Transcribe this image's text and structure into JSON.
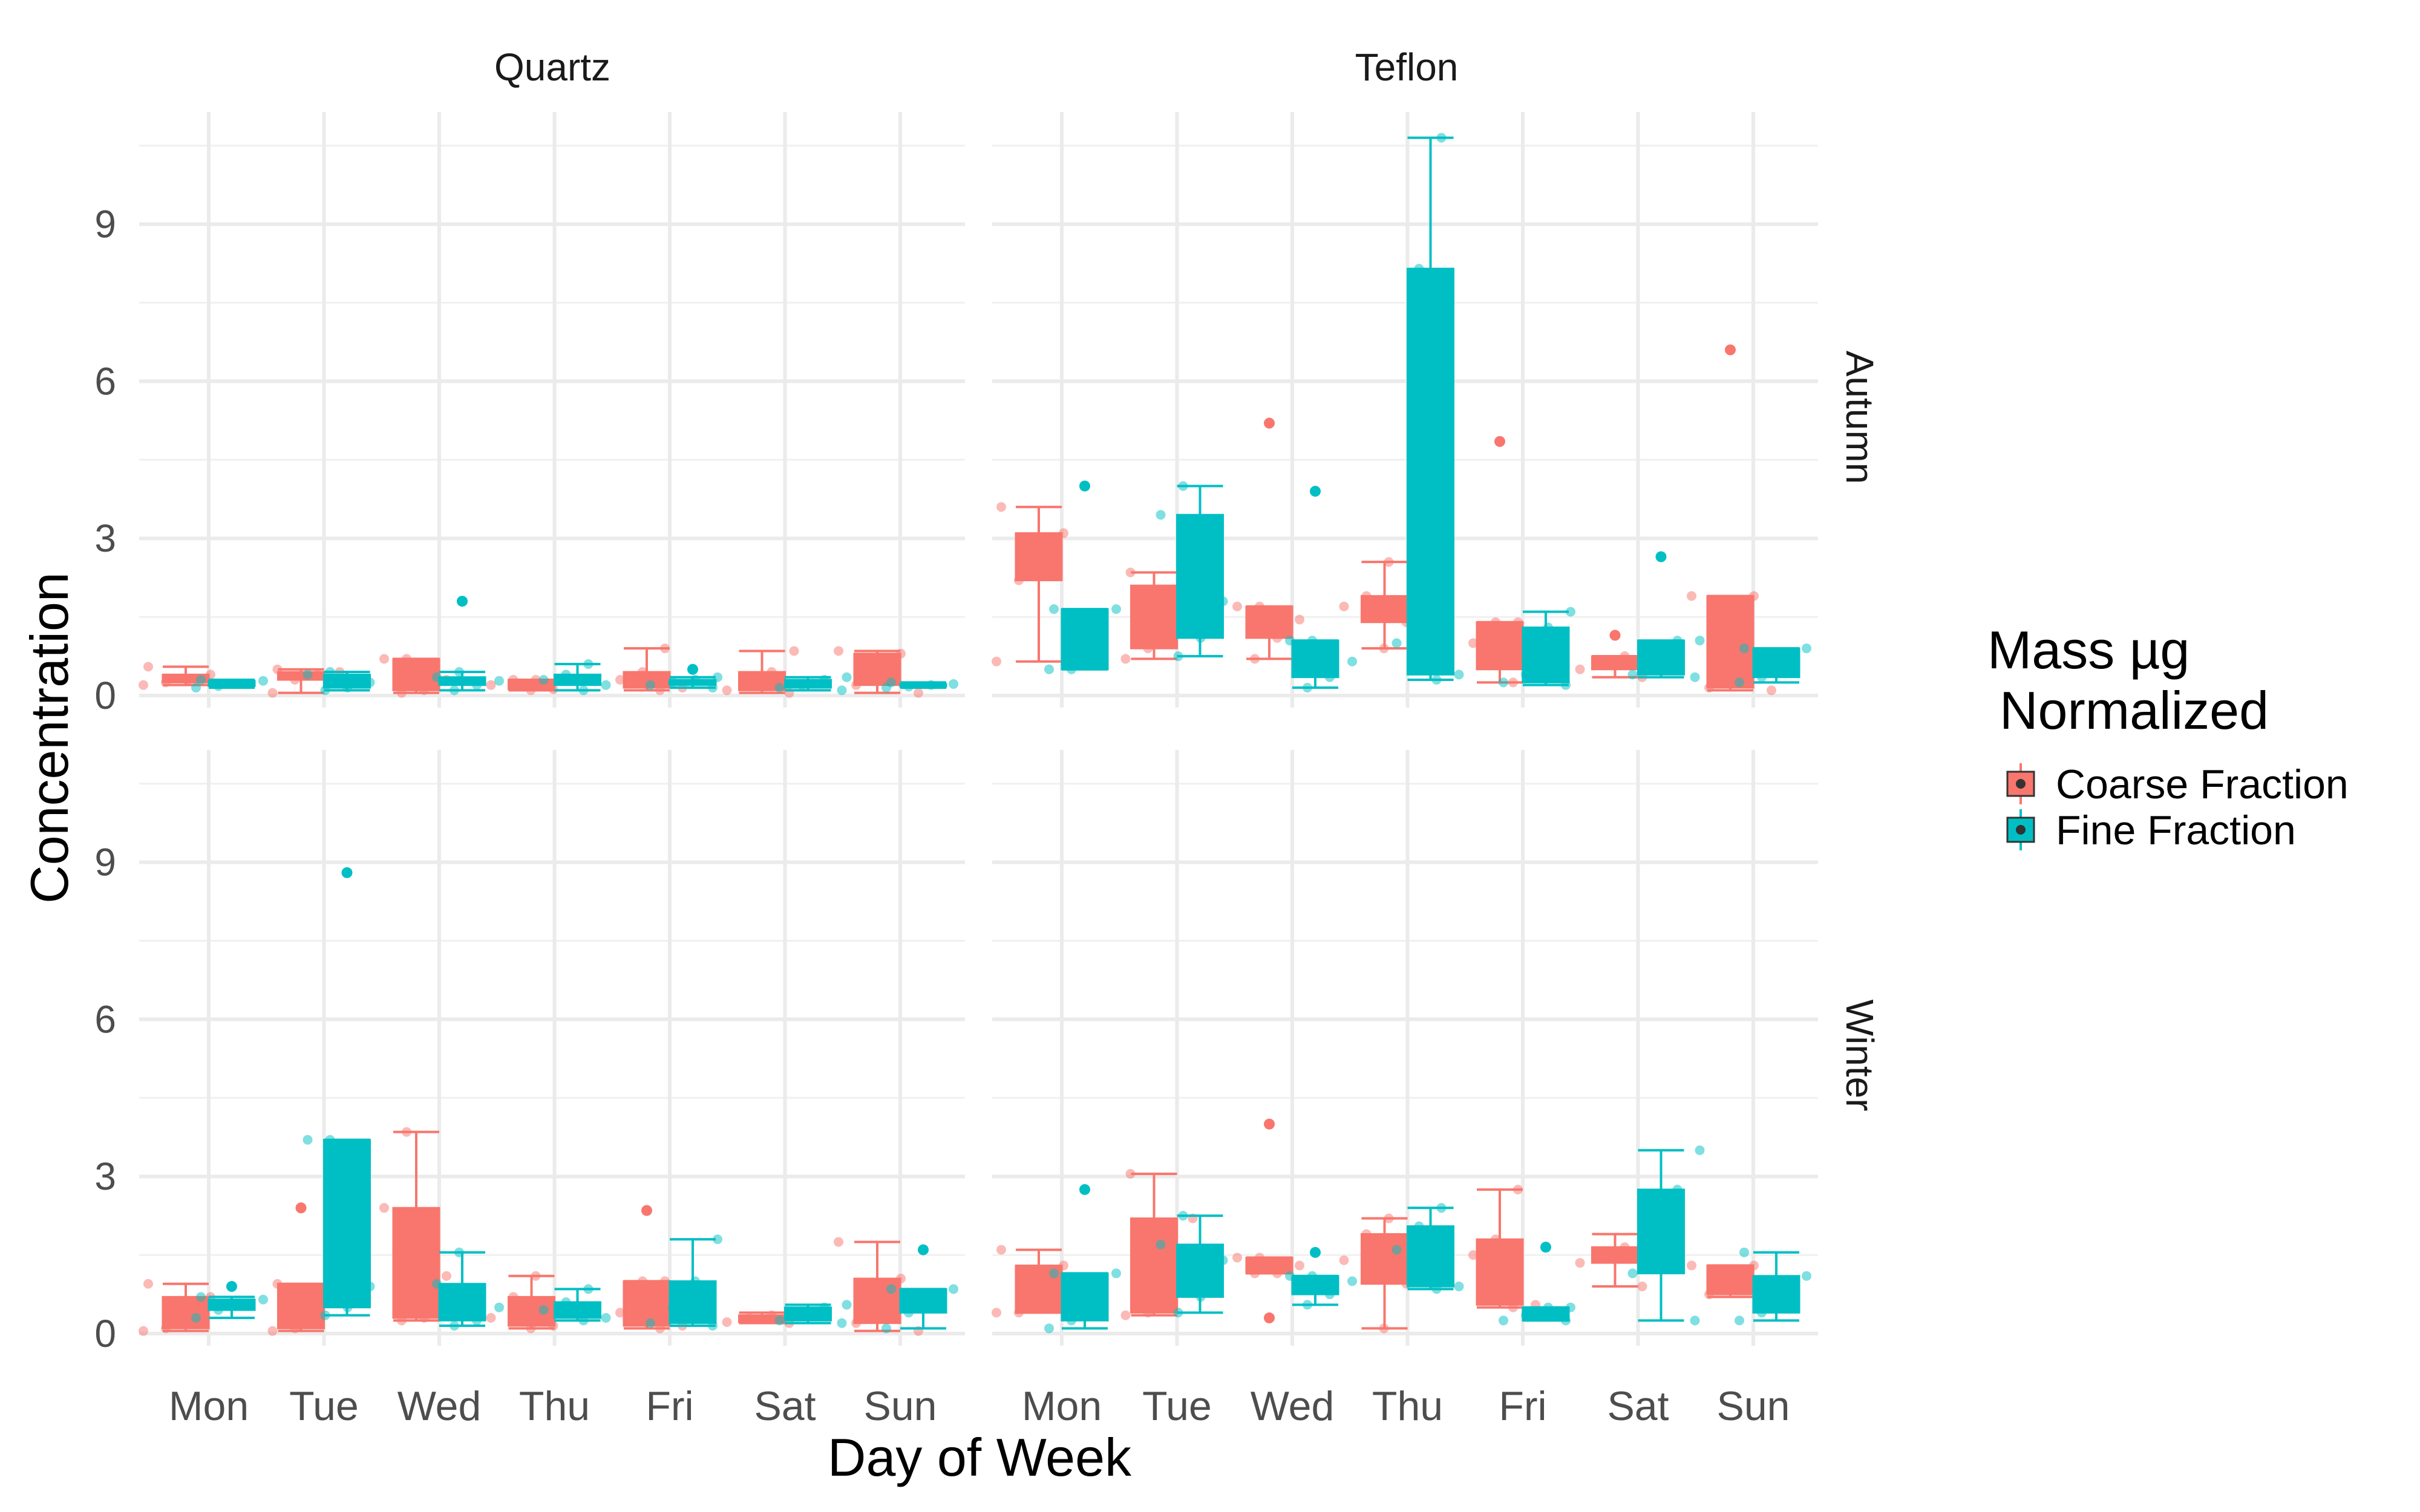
{
  "chart_data": {
    "type": "boxplot",
    "title": "",
    "xlabel": "Day of Week",
    "ylabel": "Concentration",
    "ylim": [
      -0.3,
      11.2
    ],
    "yticks": [
      0,
      3,
      6,
      9
    ],
    "categories": [
      "Mon",
      "Tue",
      "Wed",
      "Thu",
      "Fri",
      "Sat",
      "Sun"
    ],
    "facet_columns": [
      "Quartz",
      "Teflon"
    ],
    "facet_rows": [
      "Autumn",
      "Winter"
    ],
    "legend": {
      "title_line1": "Mass µg",
      "title_line2": "Normalized",
      "position": "right",
      "items": [
        {
          "name": "Coarse Fraction",
          "color": "#F8766D"
        },
        {
          "name": "Fine Fraction",
          "color": "#00BFC4"
        }
      ]
    },
    "grid": true,
    "panels": [
      {
        "column": "Quartz",
        "row": "Autumn",
        "series": [
          {
            "name": "Coarse Fraction",
            "boxes": [
              {
                "min": 0.2,
                "q1": 0.25,
                "median": 0.3,
                "q3": 0.4,
                "max": 0.55,
                "outliers": []
              },
              {
                "min": 0.05,
                "q1": 0.3,
                "median": 0.4,
                "q3": 0.45,
                "max": 0.5,
                "outliers": []
              },
              {
                "min": 0.05,
                "q1": 0.1,
                "median": 0.3,
                "q3": 0.7,
                "max": 0.7,
                "outliers": []
              },
              {
                "min": 0.1,
                "q1": 0.12,
                "median": 0.2,
                "q3": 0.3,
                "max": 0.3,
                "outliers": []
              },
              {
                "min": 0.1,
                "q1": 0.15,
                "median": 0.3,
                "q3": 0.45,
                "max": 0.9,
                "outliers": []
              },
              {
                "min": 0.05,
                "q1": 0.1,
                "median": 0.2,
                "q3": 0.45,
                "max": 0.85,
                "outliers": []
              },
              {
                "min": 0.05,
                "q1": 0.2,
                "median": 0.45,
                "q3": 0.8,
                "max": 0.85,
                "outliers": []
              }
            ]
          },
          {
            "name": "Fine Fraction",
            "boxes": [
              {
                "min": 0.15,
                "q1": 0.18,
                "median": 0.22,
                "q3": 0.28,
                "max": 0.3,
                "outliers": []
              },
              {
                "min": 0.1,
                "q1": 0.15,
                "median": 0.25,
                "q3": 0.4,
                "max": 0.45,
                "outliers": []
              },
              {
                "min": 0.1,
                "q1": 0.2,
                "median": 0.28,
                "q3": 0.35,
                "max": 0.45,
                "outliers": [
                  1.8
                ]
              },
              {
                "min": 0.1,
                "q1": 0.2,
                "median": 0.3,
                "q3": 0.4,
                "max": 0.6,
                "outliers": []
              },
              {
                "min": 0.15,
                "q1": 0.2,
                "median": 0.25,
                "q3": 0.3,
                "max": 0.35,
                "outliers": [
                  0.5
                ]
              },
              {
                "min": 0.1,
                "q1": 0.15,
                "median": 0.2,
                "q3": 0.3,
                "max": 0.35,
                "outliers": []
              },
              {
                "min": 0.15,
                "q1": 0.17,
                "median": 0.2,
                "q3": 0.22,
                "max": 0.25,
                "outliers": []
              }
            ]
          }
        ]
      },
      {
        "column": "Teflon",
        "row": "Autumn",
        "series": [
          {
            "name": "Coarse Fraction",
            "boxes": [
              {
                "min": 0.65,
                "q1": 2.2,
                "median": 2.6,
                "q3": 3.1,
                "max": 3.6,
                "outliers": []
              },
              {
                "min": 0.7,
                "q1": 0.9,
                "median": 1.2,
                "q3": 2.1,
                "max": 2.35,
                "outliers": []
              },
              {
                "min": 0.7,
                "q1": 1.1,
                "median": 1.45,
                "q3": 1.7,
                "max": 1.7,
                "outliers": [
                  5.2
                ]
              },
              {
                "min": 0.9,
                "q1": 1.4,
                "median": 1.7,
                "q3": 1.9,
                "max": 2.55,
                "outliers": []
              },
              {
                "min": 0.25,
                "q1": 0.5,
                "median": 1.0,
                "q3": 1.4,
                "max": 1.4,
                "outliers": [
                  4.85
                ]
              },
              {
                "min": 0.35,
                "q1": 0.5,
                "median": 0.6,
                "q3": 0.75,
                "max": 0.75,
                "outliers": [
                  1.15
                ]
              },
              {
                "min": 0.1,
                "q1": 0.15,
                "median": 0.3,
                "q3": 1.9,
                "max": 1.9,
                "outliers": [
                  6.6
                ]
              }
            ]
          },
          {
            "name": "Fine Fraction",
            "boxes": [
              {
                "min": 0.5,
                "q1": 0.5,
                "median": 0.8,
                "q3": 1.65,
                "max": 1.65,
                "outliers": [
                  4.0
                ]
              },
              {
                "min": 0.75,
                "q1": 1.1,
                "median": 1.8,
                "q3": 3.45,
                "max": 4.0,
                "outliers": []
              },
              {
                "min": 0.15,
                "q1": 0.35,
                "median": 0.65,
                "q3": 1.05,
                "max": 1.05,
                "outliers": [
                  3.9
                ]
              },
              {
                "min": 0.3,
                "q1": 0.4,
                "median": 1.0,
                "q3": 8.15,
                "max": 10.65,
                "outliers": []
              },
              {
                "min": 0.2,
                "q1": 0.25,
                "median": 0.4,
                "q3": 1.3,
                "max": 1.6,
                "outliers": []
              },
              {
                "min": 0.35,
                "q1": 0.4,
                "median": 0.6,
                "q3": 1.05,
                "max": 1.05,
                "outliers": [
                  2.65
                ]
              },
              {
                "min": 0.25,
                "q1": 0.35,
                "median": 0.5,
                "q3": 0.9,
                "max": 0.9,
                "outliers": []
              }
            ]
          }
        ]
      },
      {
        "column": "Quartz",
        "row": "Winter",
        "series": [
          {
            "name": "Coarse Fraction",
            "boxes": [
              {
                "min": 0.05,
                "q1": 0.1,
                "median": 0.35,
                "q3": 0.7,
                "max": 0.95,
                "outliers": []
              },
              {
                "min": 0.05,
                "q1": 0.1,
                "median": 0.3,
                "q3": 0.95,
                "max": 0.95,
                "outliers": [
                  2.4
                ]
              },
              {
                "min": 0.25,
                "q1": 0.3,
                "median": 1.1,
                "q3": 2.4,
                "max": 3.85,
                "outliers": []
              },
              {
                "min": 0.1,
                "q1": 0.15,
                "median": 0.3,
                "q3": 0.7,
                "max": 1.1,
                "outliers": []
              },
              {
                "min": 0.1,
                "q1": 0.15,
                "median": 0.4,
                "q3": 1.0,
                "max": 1.0,
                "outliers": [
                  2.35
                ]
              },
              {
                "min": 0.2,
                "q1": 0.22,
                "median": 0.3,
                "q3": 0.35,
                "max": 0.4,
                "outliers": []
              },
              {
                "min": 0.05,
                "q1": 0.2,
                "median": 0.4,
                "q3": 1.05,
                "max": 1.75,
                "outliers": []
              }
            ]
          },
          {
            "name": "Fine Fraction",
            "boxes": [
              {
                "min": 0.3,
                "q1": 0.45,
                "median": 0.55,
                "q3": 0.65,
                "max": 0.7,
                "outliers": [
                  0.9
                ]
              },
              {
                "min": 0.35,
                "q1": 0.5,
                "median": 0.9,
                "q3": 3.7,
                "max": 3.7,
                "outliers": [
                  8.8
                ]
              },
              {
                "min": 0.15,
                "q1": 0.25,
                "median": 0.5,
                "q3": 0.95,
                "max": 1.55,
                "outliers": []
              },
              {
                "min": 0.25,
                "q1": 0.3,
                "median": 0.45,
                "q3": 0.6,
                "max": 0.85,
                "outliers": []
              },
              {
                "min": 0.15,
                "q1": 0.2,
                "median": 0.5,
                "q3": 1.0,
                "max": 1.8,
                "outliers": []
              },
              {
                "min": 0.2,
                "q1": 0.25,
                "median": 0.35,
                "q3": 0.5,
                "max": 0.55,
                "outliers": []
              },
              {
                "min": 0.1,
                "q1": 0.4,
                "median": 0.6,
                "q3": 0.85,
                "max": 0.85,
                "outliers": [
                  1.6
                ]
              }
            ]
          }
        ]
      },
      {
        "column": "Teflon",
        "row": "Winter",
        "series": [
          {
            "name": "Coarse Fraction",
            "boxes": [
              {
                "min": 0.4,
                "q1": 0.4,
                "median": 0.9,
                "q3": 1.3,
                "max": 1.6,
                "outliers": []
              },
              {
                "min": 0.35,
                "q1": 0.4,
                "median": 1.2,
                "q3": 2.2,
                "max": 3.05,
                "outliers": []
              },
              {
                "min": 1.15,
                "q1": 1.15,
                "median": 1.3,
                "q3": 1.45,
                "max": 1.45,
                "outliers": [
                  4.0,
                  0.3
                ]
              },
              {
                "min": 0.1,
                "q1": 0.95,
                "median": 1.4,
                "q3": 1.9,
                "max": 2.2,
                "outliers": []
              },
              {
                "min": 0.5,
                "q1": 0.55,
                "median": 1.5,
                "q3": 1.8,
                "max": 2.75,
                "outliers": []
              },
              {
                "min": 0.9,
                "q1": 1.35,
                "median": 1.5,
                "q3": 1.65,
                "max": 1.9,
                "outliers": []
              },
              {
                "min": 0.7,
                "q1": 0.75,
                "median": 0.9,
                "q3": 1.3,
                "max": 1.3,
                "outliers": []
              }
            ]
          },
          {
            "name": "Fine Fraction",
            "boxes": [
              {
                "min": 0.1,
                "q1": 0.25,
                "median": 0.5,
                "q3": 1.15,
                "max": 1.15,
                "outliers": [
                  2.75
                ]
              },
              {
                "min": 0.4,
                "q1": 0.7,
                "median": 1.4,
                "q3": 1.7,
                "max": 2.25,
                "outliers": []
              },
              {
                "min": 0.55,
                "q1": 0.75,
                "median": 1.0,
                "q3": 1.1,
                "max": 1.1,
                "outliers": [
                  1.55
                ]
              },
              {
                "min": 0.85,
                "q1": 0.9,
                "median": 1.6,
                "q3": 2.05,
                "max": 2.4,
                "outliers": []
              },
              {
                "min": 0.25,
                "q1": 0.25,
                "median": 0.35,
                "q3": 0.5,
                "max": 0.5,
                "outliers": [
                  1.65
                ]
              },
              {
                "min": 0.25,
                "q1": 1.15,
                "median": 1.85,
                "q3": 2.75,
                "max": 3.5,
                "outliers": []
              },
              {
                "min": 0.25,
                "q1": 0.4,
                "median": 0.75,
                "q3": 1.1,
                "max": 1.55,
                "outliers": []
              }
            ]
          }
        ]
      }
    ]
  }
}
